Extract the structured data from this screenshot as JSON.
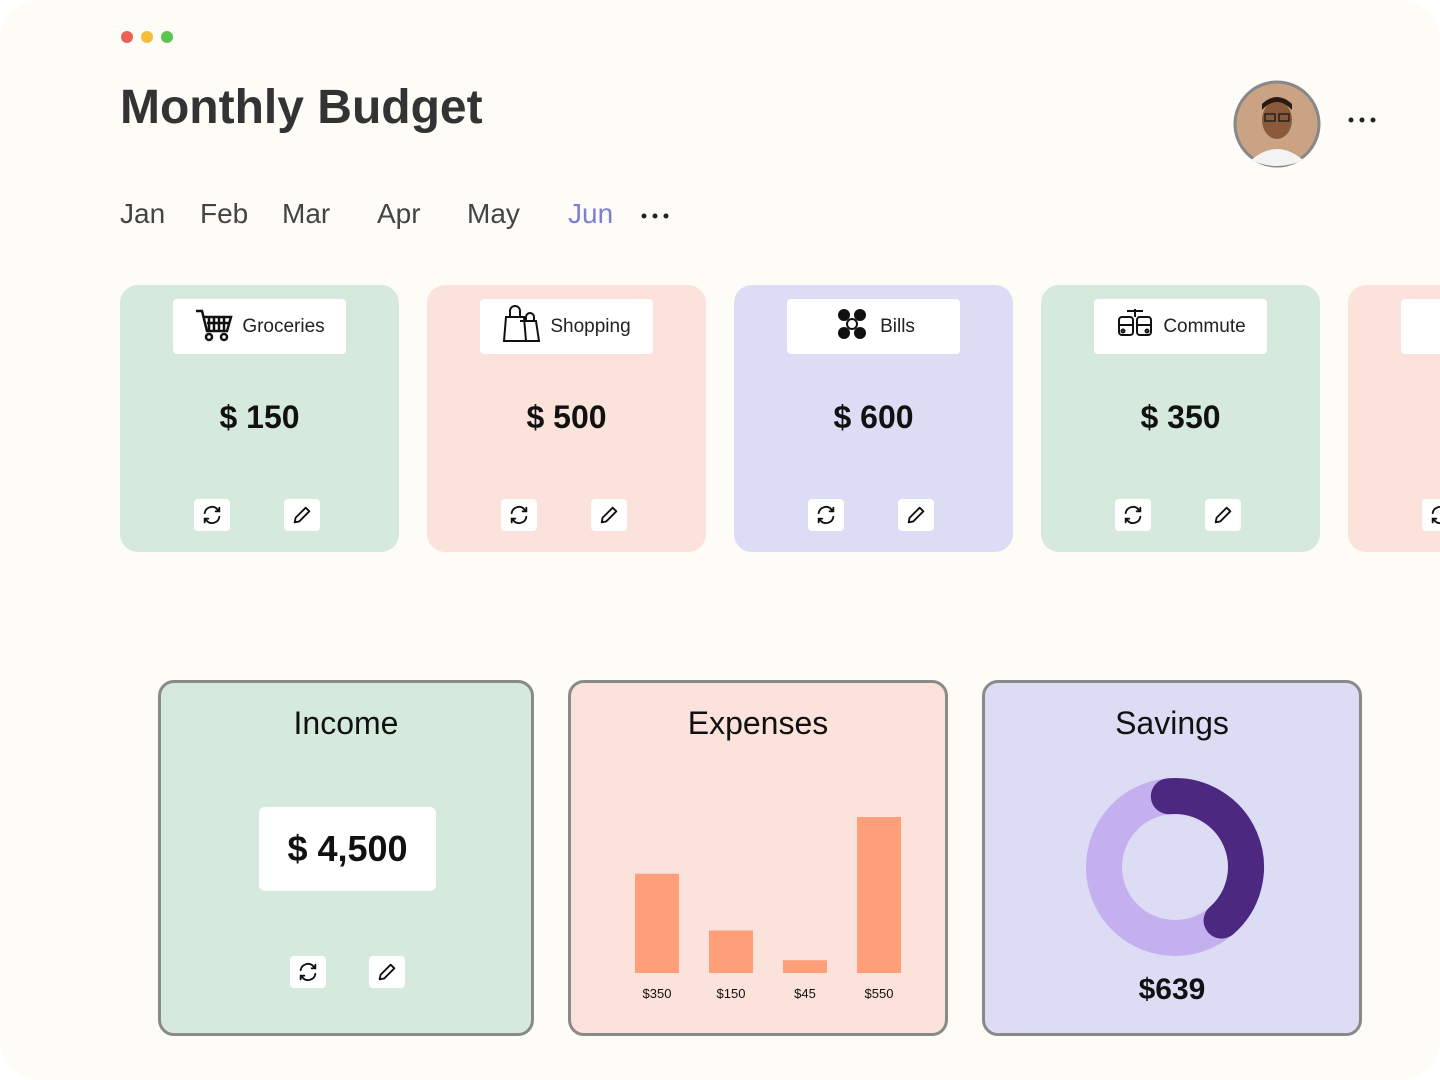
{
  "header": {
    "title": "Monthly Budget"
  },
  "months": {
    "items": [
      "Jan",
      "Feb",
      "Mar",
      "Apr",
      "May",
      "Jun"
    ],
    "active": 5
  },
  "cards": [
    {
      "name": "Groceries",
      "amount": "$ 150",
      "color": "#d5eadc"
    },
    {
      "name": "Shopping",
      "amount": "$ 500",
      "color": "#fbe2da"
    },
    {
      "name": "Bills",
      "amount": "$ 600",
      "color": "#dcdcf5"
    },
    {
      "name": "Commute",
      "amount": "$ 350",
      "color": "#d5eadc"
    },
    {
      "amount": "$",
      "color": "#fbe2da"
    }
  ],
  "income": {
    "title": "Income",
    "amount": "$ 4,500"
  },
  "expenses": {
    "title": "Expenses",
    "values": [
      350,
      150,
      45,
      550
    ],
    "value_labels": [
      "$350",
      "$150",
      "$45",
      "$550"
    ],
    "color": "#ff9f7a"
  },
  "savings": {
    "title": "Savings",
    "amount": "$639",
    "share": 40
  }
}
